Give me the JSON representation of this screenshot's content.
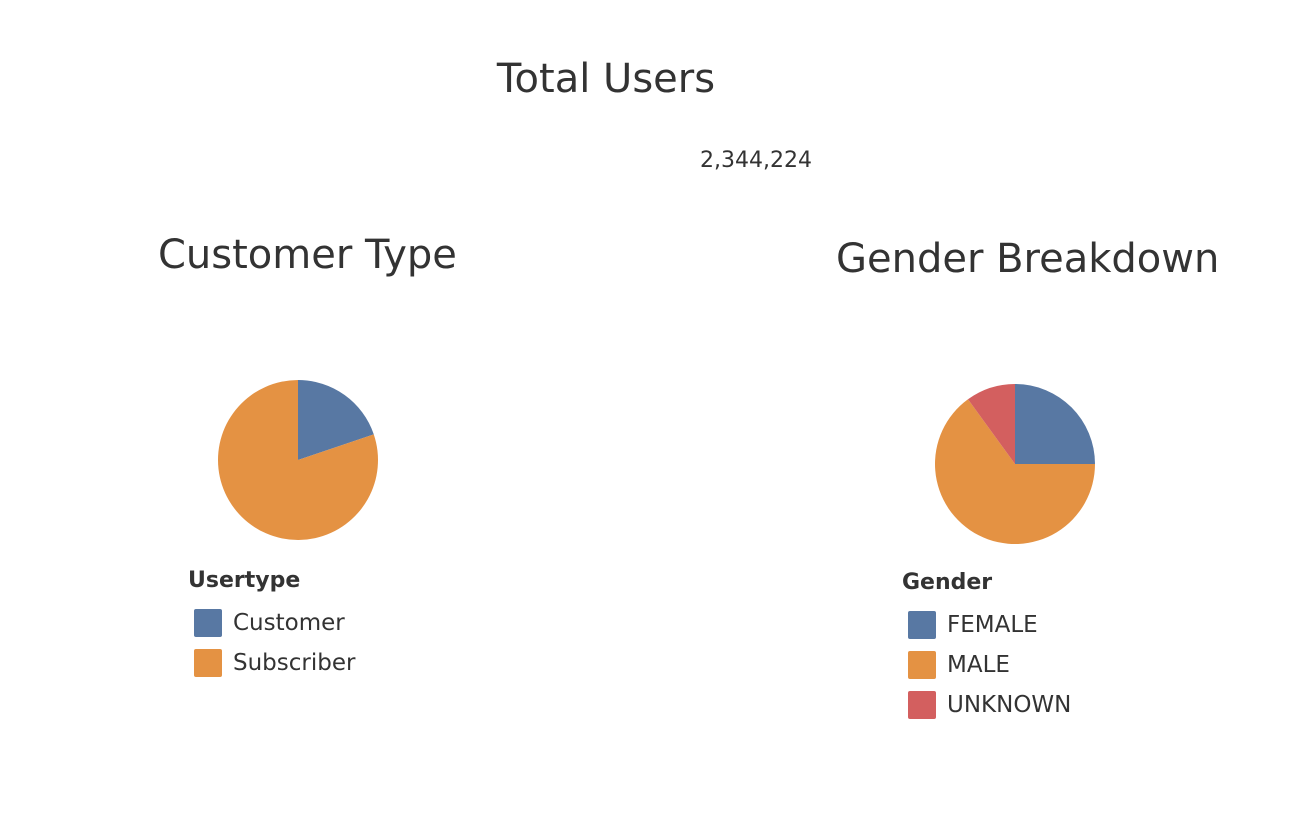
{
  "header": {
    "title": "Total Users",
    "value": "2,344,224"
  },
  "chart_data": [
    {
      "type": "pie",
      "title": "Customer Type",
      "legend_title": "Usertype",
      "legend_placement": "bottom",
      "categories": [
        "Customer",
        "Subscriber"
      ],
      "values": [
        19.8,
        80.2
      ],
      "colors": [
        "#5878a3",
        "#e49243"
      ]
    },
    {
      "type": "pie",
      "title": "Gender Breakdown",
      "legend_title": "Gender",
      "legend_placement": "bottom",
      "categories": [
        "FEMALE",
        "MALE",
        "UNKNOWN"
      ],
      "values": [
        25,
        65,
        10
      ],
      "colors": [
        "#5878a3",
        "#e49243",
        "#d35f5f"
      ]
    }
  ]
}
